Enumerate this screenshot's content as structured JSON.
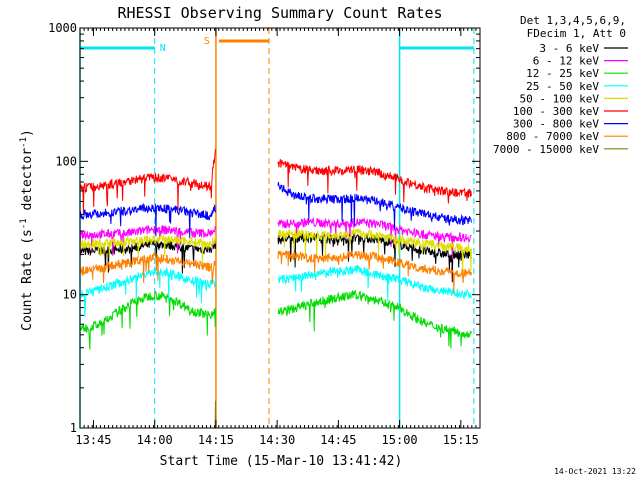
{
  "chart_data": {
    "type": "line",
    "title": "RHESSI Observing Summary Count Rates",
    "xlabel": "Start Time (15-Mar-10 13:41:42)",
    "ylabel_main": "Count Rate (s",
    "ylabel_sup1": "-1",
    "ylabel_mid": " detector",
    "ylabel_sup2": "-1",
    "ylabel_end": ")",
    "yscale": "log",
    "ylim": [
      1,
      1000
    ],
    "xlim_minutes": [
      0,
      98
    ],
    "x_ticks": [
      {
        "label": "13:45",
        "t": 3.3
      },
      {
        "label": "14:00",
        "t": 18.3
      },
      {
        "label": "14:15",
        "t": 33.3
      },
      {
        "label": "14:30",
        "t": 48.3
      },
      {
        "label": "14:45",
        "t": 63.3
      },
      {
        "label": "15:00",
        "t": 78.3
      },
      {
        "label": "15:15",
        "t": 93.3
      }
    ],
    "y_ticks": [
      {
        "label": "1",
        "v": 1
      },
      {
        "label": "10",
        "v": 10
      },
      {
        "label": "100",
        "v": 100
      },
      {
        "label": "1000",
        "v": 1000
      }
    ],
    "legend": {
      "header1": "Det 1,3,4,5,6,9,",
      "header2": "FDecim 1, Att 0",
      "placement": "outside-right"
    },
    "annotations": {
      "night_label": "N",
      "saa_label": "S",
      "night_color": "#00e5ee",
      "saa_color": "#ff8000",
      "night_boundaries": [
        0,
        18.3,
        78.3,
        96.5
      ],
      "saa_window": [
        33.3,
        46.3
      ]
    },
    "timestamp": "14-Oct-2021 13:22",
    "series": [
      {
        "name": "3 - 6 keV",
        "color": "#000000",
        "values": [
          [
            0,
            21
          ],
          [
            12,
            22
          ],
          [
            18,
            24
          ],
          [
            22,
            23.5
          ],
          [
            28,
            22
          ],
          [
            32,
            22
          ],
          [
            33.2,
            24
          ],
          [
            50,
            26
          ],
          [
            56,
            27
          ],
          [
            63,
            26
          ],
          [
            68,
            27
          ],
          [
            73,
            26
          ],
          [
            78,
            24
          ],
          [
            85,
            21
          ],
          [
            90,
            20
          ],
          [
            96,
            20
          ]
        ]
      },
      {
        "name": "6 - 12 keV",
        "color": "#ff00ff",
        "values": [
          [
            0,
            28
          ],
          [
            12,
            29
          ],
          [
            18,
            31
          ],
          [
            22,
            30.5
          ],
          [
            28,
            29
          ],
          [
            32,
            29
          ],
          [
            33.2,
            31
          ],
          [
            50,
            34
          ],
          [
            56,
            35
          ],
          [
            63,
            34
          ],
          [
            68,
            35
          ],
          [
            73,
            34
          ],
          [
            78,
            31
          ],
          [
            85,
            28
          ],
          [
            90,
            27
          ],
          [
            96,
            27
          ]
        ]
      },
      {
        "name": "12 - 25 keV",
        "color": "#00dd00",
        "values": [
          [
            0,
            5.5
          ],
          [
            5,
            6
          ],
          [
            12,
            8.5
          ],
          [
            18,
            10
          ],
          [
            22,
            9.5
          ],
          [
            28,
            7.5
          ],
          [
            32,
            7
          ],
          [
            33.2,
            8
          ],
          [
            50,
            7.5
          ],
          [
            56,
            8.5
          ],
          [
            63,
            9.5
          ],
          [
            68,
            10
          ],
          [
            73,
            9
          ],
          [
            78,
            8
          ],
          [
            85,
            6
          ],
          [
            90,
            5.5
          ],
          [
            96,
            5
          ]
        ]
      },
      {
        "name": "25 - 50 keV",
        "color": "#00ffff",
        "values": [
          [
            0,
            10
          ],
          [
            5,
            11
          ],
          [
            12,
            13
          ],
          [
            18,
            15
          ],
          [
            22,
            14.5
          ],
          [
            28,
            12.5
          ],
          [
            32,
            12
          ],
          [
            33.2,
            13
          ],
          [
            50,
            13
          ],
          [
            56,
            14
          ],
          [
            63,
            15
          ],
          [
            68,
            15.5
          ],
          [
            73,
            14
          ],
          [
            78,
            13
          ],
          [
            85,
            11
          ],
          [
            90,
            10.5
          ],
          [
            96,
            10
          ]
        ]
      },
      {
        "name": "50 - 100 keV",
        "color": "#dddd00",
        "values": [
          [
            0,
            24
          ],
          [
            12,
            25
          ],
          [
            18,
            26
          ],
          [
            22,
            26
          ],
          [
            28,
            25
          ],
          [
            32,
            24
          ],
          [
            33.2,
            26
          ],
          [
            50,
            29
          ],
          [
            56,
            28
          ],
          [
            63,
            28
          ],
          [
            68,
            29
          ],
          [
            73,
            28
          ],
          [
            78,
            26
          ],
          [
            85,
            24
          ],
          [
            90,
            23
          ],
          [
            96,
            22
          ]
        ]
      },
      {
        "name": "100 - 300 keV",
        "color": "#ff0000",
        "values": [
          [
            0,
            63
          ],
          [
            6,
            66
          ],
          [
            12,
            72
          ],
          [
            18,
            76
          ],
          [
            22,
            74
          ],
          [
            28,
            68
          ],
          [
            32,
            64
          ],
          [
            33.2,
            120
          ],
          [
            33.8,
            66
          ],
          [
            48.5,
            98
          ],
          [
            52,
            90
          ],
          [
            56,
            86
          ],
          [
            63,
            85
          ],
          [
            68,
            87
          ],
          [
            73,
            82
          ],
          [
            78,
            74
          ],
          [
            85,
            63
          ],
          [
            90,
            59
          ],
          [
            96,
            58
          ]
        ]
      },
      {
        "name": "300 - 800 keV",
        "color": "#0000ff",
        "values": [
          [
            0,
            40
          ],
          [
            6,
            41
          ],
          [
            12,
            43
          ],
          [
            18,
            45
          ],
          [
            22,
            44
          ],
          [
            28,
            41
          ],
          [
            32,
            39
          ],
          [
            33.2,
            45
          ],
          [
            48.5,
            65
          ],
          [
            52,
            57
          ],
          [
            56,
            53
          ],
          [
            63,
            52
          ],
          [
            68,
            53
          ],
          [
            73,
            50
          ],
          [
            78,
            45
          ],
          [
            85,
            40
          ],
          [
            90,
            37
          ],
          [
            96,
            36
          ]
        ]
      },
      {
        "name": "800 - 7000 keV",
        "color": "#ff8000",
        "values": [
          [
            0,
            15
          ],
          [
            6,
            16
          ],
          [
            12,
            17.5
          ],
          [
            18,
            19
          ],
          [
            22,
            18.5
          ],
          [
            28,
            17
          ],
          [
            32,
            16
          ],
          [
            33.2,
            17
          ],
          [
            50,
            20
          ],
          [
            56,
            19
          ],
          [
            63,
            19
          ],
          [
            68,
            20
          ],
          [
            73,
            19
          ],
          [
            78,
            17.5
          ],
          [
            85,
            15.5
          ],
          [
            90,
            15
          ],
          [
            96,
            14.5
          ]
        ]
      },
      {
        "name": "7000 - 15000 keV",
        "color": "#808000",
        "values": [
          [
            33.1,
            1
          ],
          [
            33.2,
            1.6
          ],
          [
            33.3,
            1
          ]
        ]
      }
    ]
  }
}
